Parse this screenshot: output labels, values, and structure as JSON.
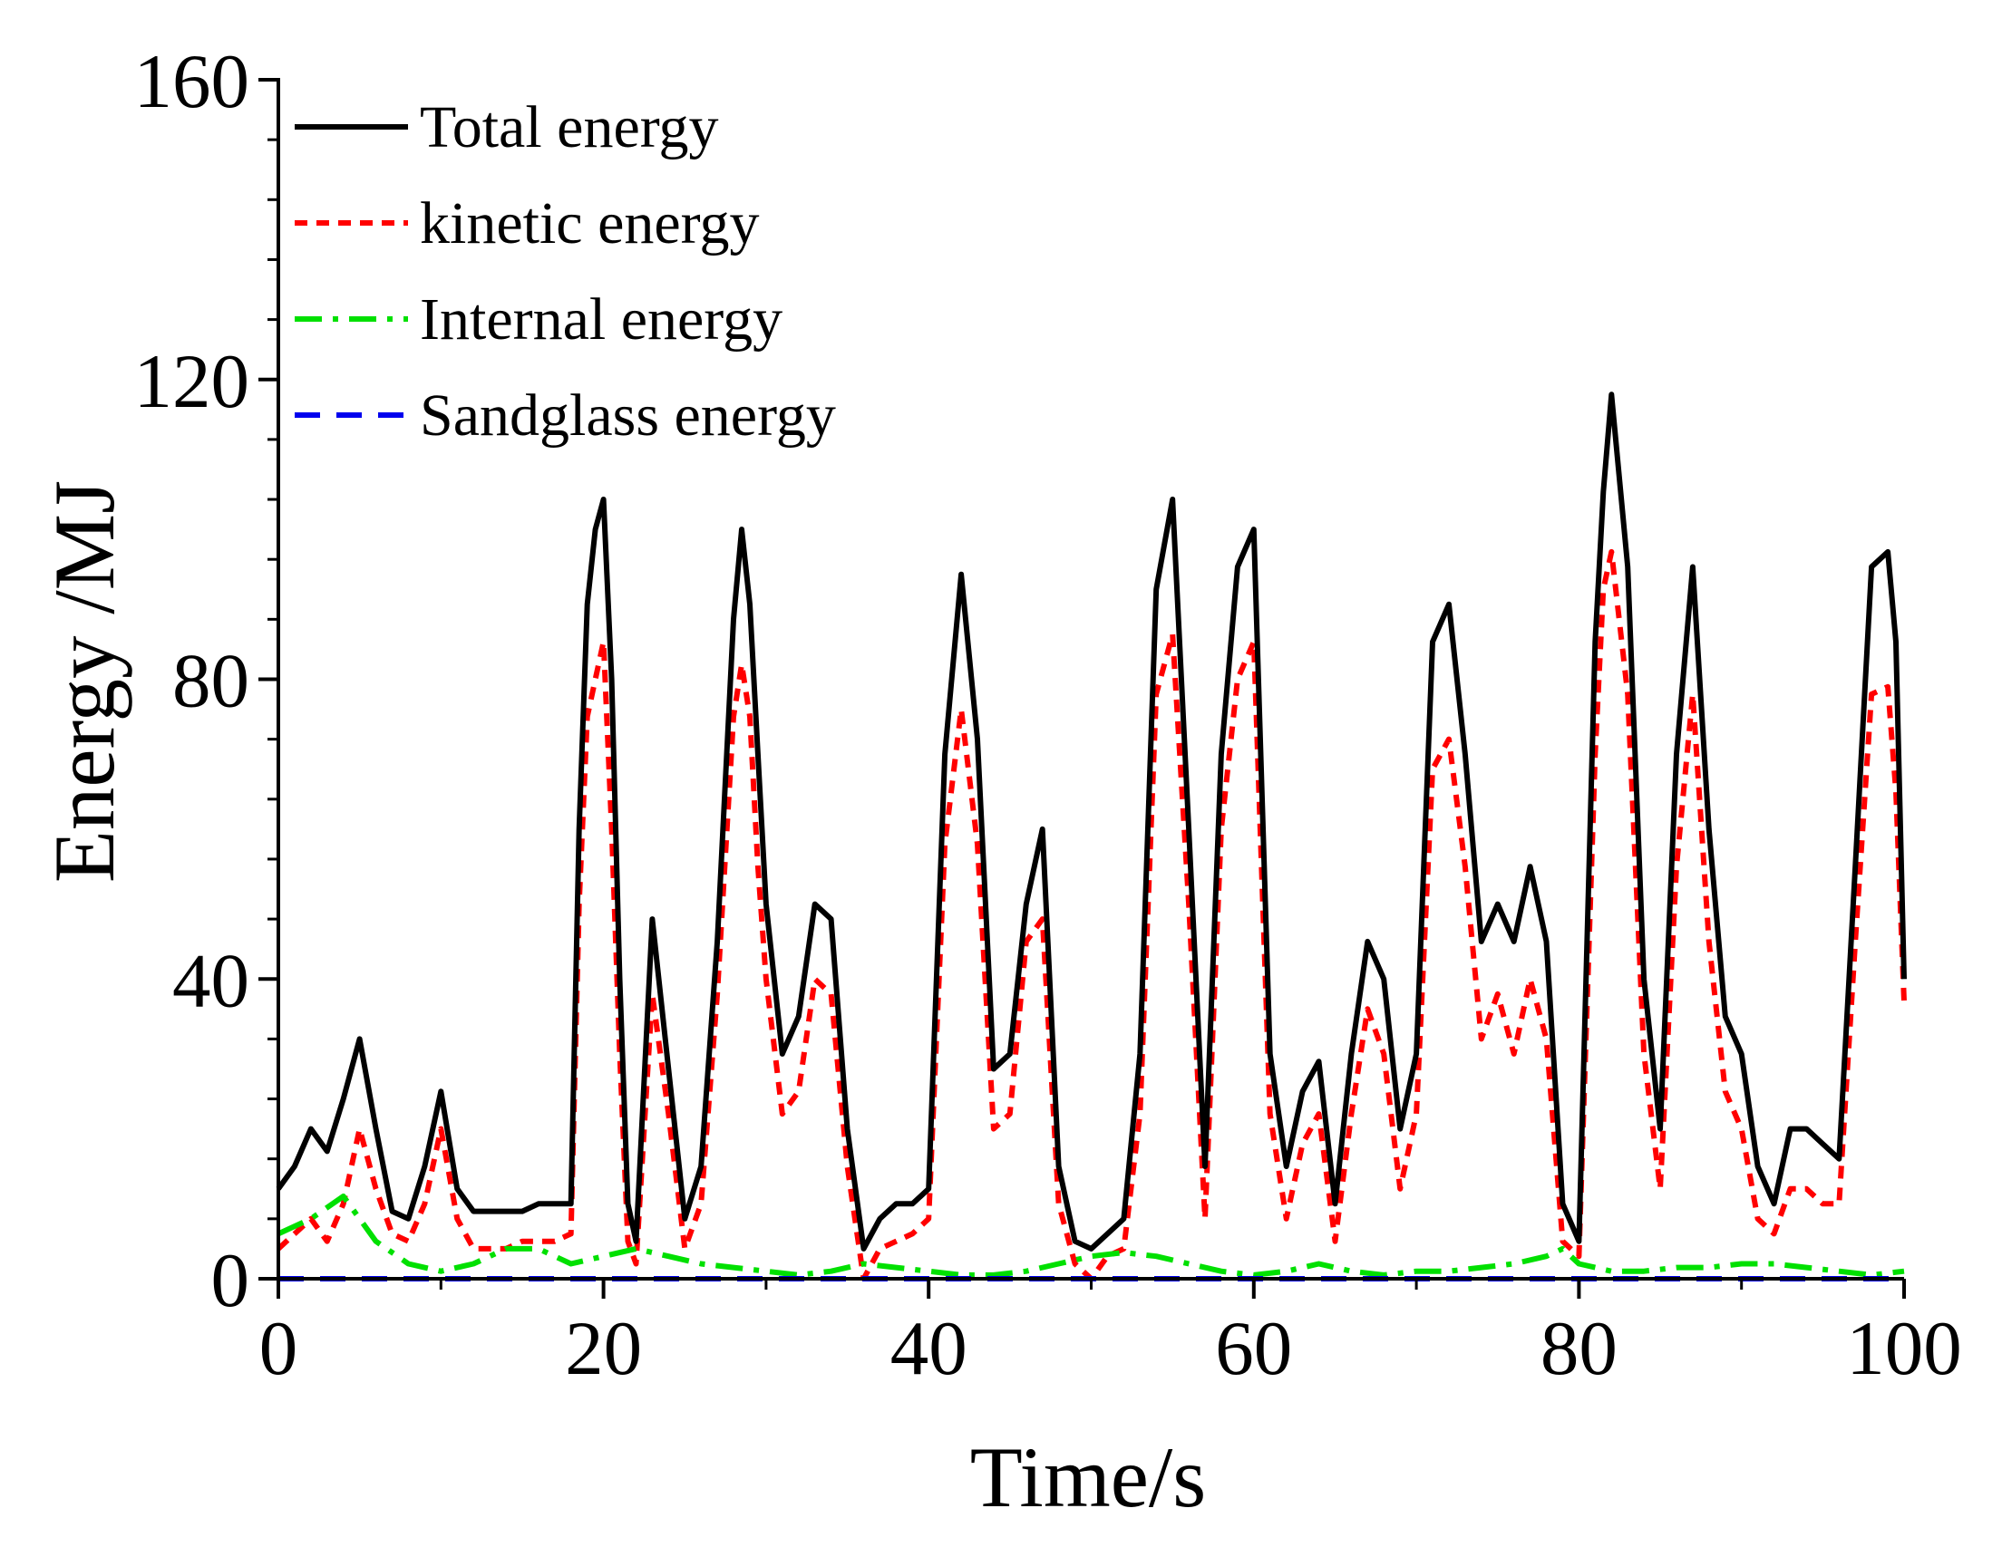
{
  "chart_data": {
    "type": "line",
    "title": "",
    "xlabel": "Time/s",
    "ylabel": "Energy /MJ",
    "xlim": [
      0,
      100
    ],
    "ylim": [
      0,
      160
    ],
    "xticks": [
      0,
      20,
      40,
      60,
      80,
      100
    ],
    "xtick_labels": [
      "0",
      "20",
      "40",
      "60",
      "80",
      "100"
    ],
    "yticks": [
      0,
      40,
      80,
      120,
      160
    ],
    "ytick_labels": [
      "0",
      "40",
      "80",
      "120",
      "160"
    ],
    "grid": false,
    "legend_position": "top-left",
    "series": [
      {
        "name": "Total energy",
        "color": "#000000",
        "style": "solid",
        "x": [
          0,
          1,
          2,
          3,
          4,
          5,
          6,
          7,
          8,
          9,
          10,
          11,
          12,
          13,
          14,
          15,
          16,
          17,
          18,
          18.5,
          19,
          19.5,
          20,
          20.5,
          21,
          21.5,
          22,
          23,
          24,
          25,
          26,
          27,
          28,
          28.5,
          29,
          29.5,
          30,
          31,
          32,
          33,
          34,
          35,
          36,
          37,
          38,
          39,
          40,
          41,
          42,
          43,
          44,
          45,
          46,
          47,
          48,
          49,
          50,
          51,
          52,
          53,
          54,
          55,
          56,
          57,
          58,
          59,
          60,
          61,
          62,
          63,
          64,
          65,
          66,
          67,
          68,
          69,
          70,
          71,
          72,
          73,
          74,
          75,
          76,
          77,
          78,
          79,
          80,
          81,
          81.5,
          82,
          83,
          84,
          85,
          86,
          87,
          88,
          89,
          90,
          91,
          92,
          93,
          94,
          95,
          96,
          97,
          98,
          99,
          99.5,
          100
        ],
        "y": [
          12,
          15,
          20,
          17,
          24,
          32,
          20,
          9,
          8,
          15,
          25,
          12,
          9,
          9,
          9,
          9,
          10,
          10,
          10,
          60,
          90,
          100,
          104,
          80,
          40,
          10,
          5,
          48,
          28,
          8,
          15,
          45,
          88,
          100,
          90,
          70,
          50,
          30,
          35,
          50,
          48,
          20,
          4,
          8,
          10,
          10,
          12,
          70,
          94,
          72,
          28,
          30,
          50,
          60,
          15,
          5,
          4,
          6,
          8,
          30,
          92,
          104,
          60,
          15,
          70,
          95,
          100,
          30,
          15,
          25,
          29,
          10,
          30,
          45,
          40,
          20,
          30,
          85,
          90,
          70,
          45,
          50,
          45,
          55,
          45,
          10,
          5,
          85,
          105,
          118,
          95,
          40,
          20,
          70,
          95,
          60,
          35,
          30,
          15,
          10,
          20,
          20,
          18,
          16,
          55,
          95,
          97,
          85,
          40
        ]
      },
      {
        "name": "kinetic energy",
        "color": "#ff0000",
        "style": "dotted",
        "x": [
          0,
          1,
          2,
          3,
          4,
          5,
          6,
          7,
          8,
          9,
          10,
          11,
          12,
          13,
          14,
          15,
          16,
          17,
          18,
          18.5,
          19,
          19.5,
          20,
          20.5,
          21,
          21.5,
          22,
          23,
          24,
          25,
          26,
          27,
          28,
          28.5,
          29,
          29.5,
          30,
          31,
          32,
          33,
          34,
          35,
          36,
          37,
          38,
          39,
          40,
          41,
          42,
          43,
          44,
          45,
          46,
          47,
          48,
          49,
          50,
          51,
          52,
          53,
          54,
          55,
          56,
          57,
          58,
          59,
          60,
          61,
          62,
          63,
          64,
          65,
          66,
          67,
          68,
          69,
          70,
          71,
          72,
          73,
          74,
          75,
          76,
          77,
          78,
          79,
          80,
          81,
          81.5,
          82,
          83,
          84,
          85,
          86,
          87,
          88,
          89,
          90,
          91,
          92,
          93,
          94,
          95,
          96,
          97,
          98,
          99,
          99.5,
          100
        ],
        "y": [
          4,
          6,
          8,
          5,
          10,
          20,
          12,
          6,
          5,
          10,
          20,
          8,
          4,
          4,
          4,
          5,
          5,
          5,
          6,
          50,
          75,
          80,
          85,
          60,
          30,
          5,
          2,
          38,
          22,
          4,
          10,
          38,
          75,
          82,
          75,
          55,
          40,
          22,
          25,
          40,
          38,
          15,
          0,
          4,
          5,
          6,
          8,
          58,
          76,
          58,
          20,
          22,
          45,
          48,
          10,
          2,
          0,
          3,
          4,
          22,
          78,
          86,
          50,
          8,
          60,
          80,
          85,
          22,
          8,
          18,
          22,
          5,
          22,
          36,
          30,
          12,
          22,
          68,
          72,
          55,
          32,
          38,
          30,
          40,
          32,
          5,
          3,
          70,
          92,
          97,
          78,
          30,
          12,
          55,
          78,
          45,
          25,
          20,
          8,
          6,
          12,
          12,
          10,
          10,
          45,
          78,
          79,
          65,
          37
        ]
      },
      {
        "name": "Internal energy",
        "color": "#00e000",
        "style": "dashdot",
        "x": [
          0,
          2,
          4,
          6,
          8,
          10,
          12,
          14,
          16,
          18,
          20,
          22,
          24,
          26,
          28,
          30,
          32,
          34,
          36,
          38,
          40,
          42,
          44,
          46,
          48,
          50,
          52,
          54,
          56,
          58,
          60,
          62,
          64,
          66,
          68,
          70,
          72,
          74,
          76,
          78,
          79,
          80,
          82,
          84,
          86,
          88,
          90,
          92,
          94,
          96,
          98,
          100
        ],
        "y": [
          6,
          8,
          11,
          5,
          2,
          1,
          2,
          4,
          4,
          2,
          3,
          4,
          3,
          2,
          1.5,
          1,
          0.5,
          1,
          2,
          1.5,
          1,
          0.5,
          0.5,
          1,
          2,
          3,
          3.5,
          3,
          2,
          1,
          0.5,
          1,
          2,
          1,
          0.5,
          1,
          1,
          1.5,
          2,
          3,
          4,
          2,
          1,
          1,
          1.5,
          1.5,
          2,
          2,
          1.5,
          1,
          0.5,
          1
        ]
      },
      {
        "name": "Sandglass energy",
        "color": "#0000ee",
        "style": "dashed",
        "x": [
          0,
          100
        ],
        "y": [
          0,
          0
        ]
      }
    ]
  }
}
